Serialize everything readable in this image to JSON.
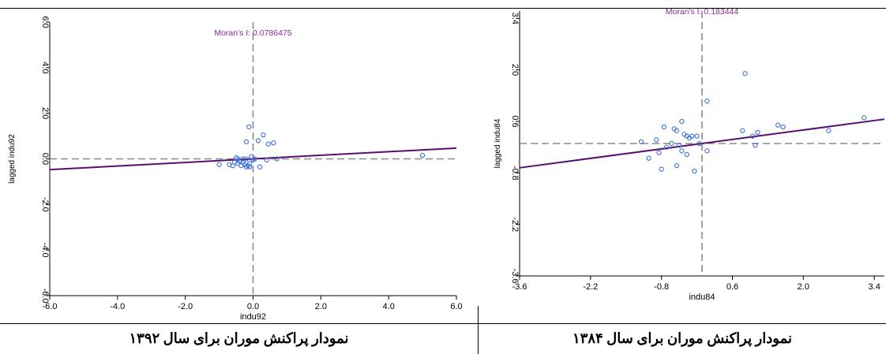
{
  "captions": {
    "left": "نمودار پراکنش موران برای سال ۱۳۹۲",
    "right": "نمودار پراکنش موران برای سال ۱۳۸۴"
  },
  "colors": {
    "points": "#3a6fd8",
    "regression_line": "#5a0f6e",
    "title": "#8a2a9a",
    "reference_lines": "#8c8c8c"
  },
  "chart_data": [
    {
      "type": "scatter",
      "title": "Moran's I: 0.0786475",
      "xlabel": "indu92",
      "ylabel": "lagged indu92",
      "xlim": [
        -6.0,
        6.0
      ],
      "ylim": [
        -6.0,
        6.0
      ],
      "xticks": [
        "-6.0",
        "-4.0",
        "-2.0",
        "0.0",
        "2.0",
        "4.0",
        "6.0"
      ],
      "yticks": [
        "-6.0",
        "-4.0",
        "-2.0",
        "0.0",
        "2.0",
        "4.0",
        "6.0"
      ],
      "slope": 0.0786475,
      "grid": false,
      "points": {
        "x": [
          -0.12,
          0.6,
          -0.45,
          0.3,
          0.45,
          0.15,
          -0.2,
          -1.0,
          -0.7,
          -0.55,
          -0.45,
          -0.4,
          -0.35,
          -0.3,
          -0.25,
          -0.2,
          -0.15,
          -0.1,
          -0.05,
          0.0,
          -0.5,
          -0.3,
          0.05,
          0.2,
          0.4,
          0.7,
          5.0,
          -0.6,
          -0.4,
          -0.2,
          -0.1
        ],
        "y": [
          1.4,
          0.7,
          0.0,
          1.05,
          0.65,
          0.8,
          0.75,
          -0.25,
          -0.25,
          -0.15,
          -0.2,
          -0.1,
          -0.3,
          -0.15,
          -0.25,
          -0.35,
          -0.3,
          -0.35,
          0.1,
          -0.05,
          0.05,
          0.0,
          0.0,
          -0.35,
          -0.05,
          0.0,
          0.15,
          -0.3,
          -0.1,
          0.0,
          -0.2
        ]
      }
    },
    {
      "type": "scatter",
      "title": "Moran's I: 0.183444",
      "xlabel": "indu84",
      "ylabel": "lagged indu84",
      "xlim": [
        -3.6,
        3.6
      ],
      "ylim": [
        -3.6,
        3.6
      ],
      "xticks": [
        "-3.6",
        "-2.2",
        "-0.8",
        "0.6",
        "2.0",
        "3.4"
      ],
      "yticks": [
        "-3.6",
        "-2.2",
        "-0.8",
        "0.6",
        "2.0",
        "3.4"
      ],
      "slope": 0.183444,
      "grid": false,
      "points": {
        "x": [
          0.85,
          0.1,
          -0.4,
          -0.75,
          -0.5,
          -0.55,
          -0.9,
          -0.35,
          -0.3,
          -0.2,
          -0.1,
          -0.25,
          -0.6,
          -0.45,
          -0.7,
          -1.2,
          -1.05,
          -0.85,
          -0.8,
          -0.5,
          -0.3,
          -0.4,
          -0.15,
          0.1,
          -0.05,
          0.8,
          1.6,
          1.0,
          1.1,
          1.05,
          1.5,
          2.5,
          3.2
        ],
        "y": [
          1.9,
          1.15,
          0.6,
          0.45,
          0.35,
          0.4,
          0.1,
          0.25,
          0.2,
          0.2,
          0.2,
          0.15,
          0.0,
          -0.05,
          -0.1,
          0.05,
          -0.4,
          -0.25,
          -0.7,
          -0.6,
          -0.3,
          -0.2,
          -0.75,
          -0.2,
          0.0,
          0.35,
          0.45,
          0.2,
          0.3,
          -0.05,
          0.5,
          0.35,
          0.7
        ]
      }
    }
  ]
}
